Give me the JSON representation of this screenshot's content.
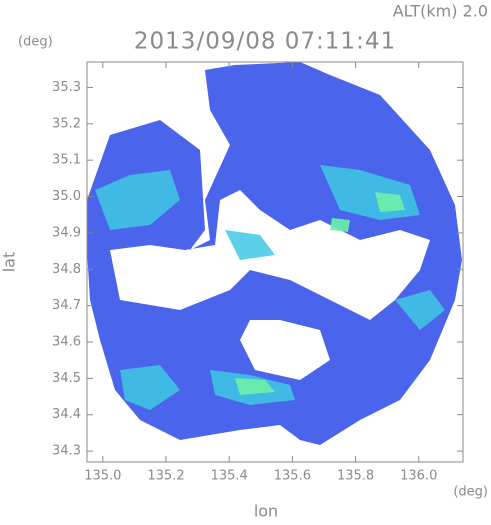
{
  "header": {
    "altitude": "ALT(km) 2.0",
    "timestamp": "2013/09/08 07:11:41"
  },
  "axes": {
    "x_label": "lon",
    "x_unit": "(deg)",
    "y_label": "lat",
    "y_unit": "(deg)",
    "xlim": [
      134.95,
      136.14
    ],
    "ylim": [
      34.27,
      35.37
    ],
    "xticks": [
      {
        "value": 135.0,
        "label": "135.0"
      },
      {
        "value": 135.2,
        "label": "135.2"
      },
      {
        "value": 135.4,
        "label": "135.4"
      },
      {
        "value": 135.6,
        "label": "135.6"
      },
      {
        "value": 135.8,
        "label": "135.8"
      },
      {
        "value": 136.0,
        "label": "136.0"
      }
    ],
    "yticks": [
      {
        "value": 34.3,
        "label": "34.3"
      },
      {
        "value": 34.4,
        "label": "34.4"
      },
      {
        "value": 34.5,
        "label": "34.5"
      },
      {
        "value": 34.6,
        "label": "34.6"
      },
      {
        "value": 34.7,
        "label": "34.7"
      },
      {
        "value": 34.8,
        "label": "34.8"
      },
      {
        "value": 34.9,
        "label": "34.9"
      },
      {
        "value": 35.0,
        "label": "35.0"
      },
      {
        "value": 35.1,
        "label": "35.1"
      },
      {
        "value": 35.2,
        "label": "35.2"
      },
      {
        "value": 35.3,
        "label": "35.3"
      }
    ]
  }
}
